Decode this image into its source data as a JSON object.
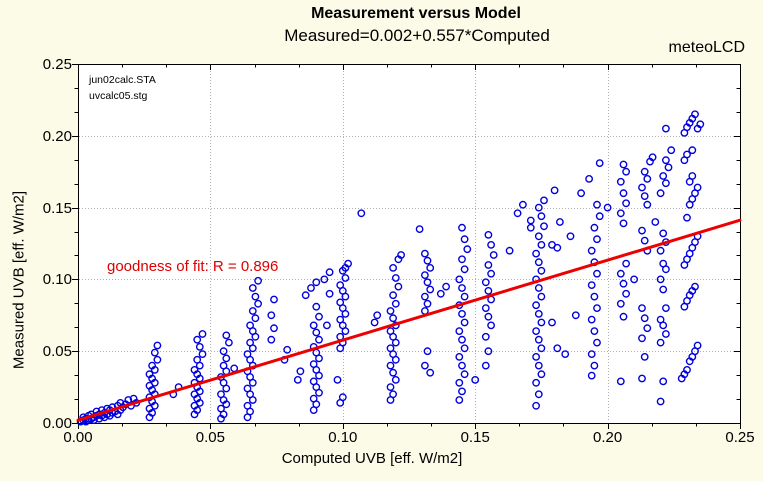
{
  "window": {
    "background_color": "#FBFBE8",
    "plot_background_color": "#FFFFFF"
  },
  "header": {
    "title": "Measurement versus Model",
    "subtitle": "Measured=0.002+0.557*Computed",
    "brand": "meteoLCD"
  },
  "plot_notes": {
    "file_label_1": "jun02calc.STA",
    "file_label_2": "uvcalc05.stg"
  },
  "chart_data": {
    "type": "scatter",
    "title": "Measurement versus Model",
    "subtitle": "Measured=0.002+0.557*Computed",
    "xlabel": "Computed UVB [eff. W/m2]",
    "ylabel": "Measured UVB [eff. W/m2]",
    "xlim": [
      0,
      0.25
    ],
    "ylim": [
      0,
      0.25
    ],
    "xticks": [
      0,
      0.05,
      0.1,
      0.15,
      0.2,
      0.25
    ],
    "yticks": [
      0,
      0.05,
      0.1,
      0.15,
      0.2,
      0.25
    ],
    "xtick_labels": [
      "0.00",
      "0.05",
      "0.10",
      "0.15",
      "0.20",
      "0.25"
    ],
    "ytick_labels": [
      "0.00",
      "0.05",
      "0.10",
      "0.15",
      "0.20",
      "0.25"
    ],
    "minor_ticks_per_major": 3,
    "grid": "dotted-major",
    "grid_color": "#b0b0b0",
    "annotation": {
      "text": "goodness of fit: R = 0.896",
      "color": "#dd0000"
    },
    "fit_line": {
      "intercept": 0.002,
      "slope": 0.557,
      "r": 0.896,
      "color": "#ee0000",
      "x_range": [
        0,
        0.25
      ]
    },
    "marker": {
      "shape": "open-circle",
      "color": "#0000dd",
      "radius_px": 3.2
    },
    "points": [
      [
        0.001,
        0.001
      ],
      [
        0.002,
        0.002
      ],
      [
        0.002,
        0.004
      ],
      [
        0.003,
        0.001
      ],
      [
        0.003,
        0.003
      ],
      [
        0.004,
        0.002
      ],
      [
        0.004,
        0.005
      ],
      [
        0.005,
        0.003
      ],
      [
        0.005,
        0.006
      ],
      [
        0.006,
        0.002
      ],
      [
        0.006,
        0.004
      ],
      [
        0.007,
        0.005
      ],
      [
        0.007,
        0.008
      ],
      [
        0.008,
        0.003
      ],
      [
        0.008,
        0.006
      ],
      [
        0.009,
        0.005
      ],
      [
        0.009,
        0.009
      ],
      [
        0.01,
        0.004
      ],
      [
        0.01,
        0.007
      ],
      [
        0.011,
        0.006
      ],
      [
        0.011,
        0.01
      ],
      [
        0.012,
        0.005
      ],
      [
        0.012,
        0.009
      ],
      [
        0.013,
        0.007
      ],
      [
        0.013,
        0.011
      ],
      [
        0.014,
        0.008
      ],
      [
        0.015,
        0.006
      ],
      [
        0.015,
        0.012
      ],
      [
        0.016,
        0.009
      ],
      [
        0.016,
        0.014
      ],
      [
        0.017,
        0.011
      ],
      [
        0.018,
        0.013
      ],
      [
        0.019,
        0.016
      ],
      [
        0.02,
        0.012
      ],
      [
        0.021,
        0.017
      ],
      [
        0.022,
        0.014
      ],
      [
        0.027,
        0.004
      ],
      [
        0.028,
        0.007
      ],
      [
        0.027,
        0.01
      ],
      [
        0.029,
        0.012
      ],
      [
        0.028,
        0.015
      ],
      [
        0.027,
        0.018
      ],
      [
        0.029,
        0.02
      ],
      [
        0.028,
        0.023
      ],
      [
        0.027,
        0.026
      ],
      [
        0.029,
        0.028
      ],
      [
        0.028,
        0.031
      ],
      [
        0.027,
        0.034
      ],
      [
        0.029,
        0.037
      ],
      [
        0.028,
        0.04
      ],
      [
        0.03,
        0.044
      ],
      [
        0.029,
        0.049
      ],
      [
        0.03,
        0.054
      ],
      [
        0.036,
        0.02
      ],
      [
        0.038,
        0.025
      ],
      [
        0.044,
        0.006
      ],
      [
        0.045,
        0.009
      ],
      [
        0.044,
        0.012
      ],
      [
        0.046,
        0.014
      ],
      [
        0.045,
        0.017
      ],
      [
        0.044,
        0.02
      ],
      [
        0.046,
        0.022
      ],
      [
        0.045,
        0.025
      ],
      [
        0.044,
        0.028
      ],
      [
        0.046,
        0.031
      ],
      [
        0.045,
        0.034
      ],
      [
        0.044,
        0.037
      ],
      [
        0.046,
        0.04
      ],
      [
        0.045,
        0.044
      ],
      [
        0.047,
        0.048
      ],
      [
        0.046,
        0.053
      ],
      [
        0.045,
        0.058
      ],
      [
        0.047,
        0.062
      ],
      [
        0.054,
        0.003
      ],
      [
        0.055,
        0.006
      ],
      [
        0.054,
        0.01
      ],
      [
        0.056,
        0.013
      ],
      [
        0.055,
        0.016
      ],
      [
        0.054,
        0.02
      ],
      [
        0.056,
        0.024
      ],
      [
        0.055,
        0.028
      ],
      [
        0.054,
        0.032
      ],
      [
        0.056,
        0.036
      ],
      [
        0.055,
        0.04
      ],
      [
        0.056,
        0.045
      ],
      [
        0.055,
        0.05
      ],
      [
        0.057,
        0.056
      ],
      [
        0.056,
        0.061
      ],
      [
        0.059,
        0.038
      ],
      [
        0.064,
        0.004
      ],
      [
        0.065,
        0.008
      ],
      [
        0.064,
        0.012
      ],
      [
        0.066,
        0.016
      ],
      [
        0.065,
        0.02
      ],
      [
        0.064,
        0.024
      ],
      [
        0.066,
        0.028
      ],
      [
        0.065,
        0.032
      ],
      [
        0.064,
        0.036
      ],
      [
        0.066,
        0.04
      ],
      [
        0.065,
        0.044
      ],
      [
        0.064,
        0.048
      ],
      [
        0.066,
        0.052
      ],
      [
        0.065,
        0.056
      ],
      [
        0.067,
        0.06
      ],
      [
        0.066,
        0.064
      ],
      [
        0.065,
        0.068
      ],
      [
        0.067,
        0.073
      ],
      [
        0.066,
        0.078
      ],
      [
        0.068,
        0.083
      ],
      [
        0.067,
        0.088
      ],
      [
        0.066,
        0.094
      ],
      [
        0.068,
        0.099
      ],
      [
        0.073,
        0.058
      ],
      [
        0.074,
        0.066
      ],
      [
        0.073,
        0.075
      ],
      [
        0.074,
        0.086
      ],
      [
        0.078,
        0.044
      ],
      [
        0.079,
        0.051
      ],
      [
        0.083,
        0.03
      ],
      [
        0.084,
        0.036
      ],
      [
        0.089,
        0.009
      ],
      [
        0.09,
        0.013
      ],
      [
        0.089,
        0.017
      ],
      [
        0.091,
        0.021
      ],
      [
        0.09,
        0.025
      ],
      [
        0.089,
        0.029
      ],
      [
        0.091,
        0.033
      ],
      [
        0.09,
        0.037
      ],
      [
        0.089,
        0.041
      ],
      [
        0.091,
        0.045
      ],
      [
        0.09,
        0.049
      ],
      [
        0.089,
        0.053
      ],
      [
        0.091,
        0.058
      ],
      [
        0.09,
        0.063
      ],
      [
        0.089,
        0.068
      ],
      [
        0.091,
        0.074
      ],
      [
        0.09,
        0.081
      ],
      [
        0.086,
        0.089
      ],
      [
        0.088,
        0.094
      ],
      [
        0.09,
        0.098
      ],
      [
        0.093,
        0.1
      ],
      [
        0.095,
        0.105
      ],
      [
        0.095,
        0.09
      ],
      [
        0.094,
        0.068
      ],
      [
        0.099,
        0.052
      ],
      [
        0.1,
        0.056
      ],
      [
        0.099,
        0.06
      ],
      [
        0.101,
        0.064
      ],
      [
        0.1,
        0.068
      ],
      [
        0.099,
        0.072
      ],
      [
        0.101,
        0.076
      ],
      [
        0.1,
        0.08
      ],
      [
        0.099,
        0.084
      ],
      [
        0.101,
        0.088
      ],
      [
        0.1,
        0.092
      ],
      [
        0.099,
        0.096
      ],
      [
        0.101,
        0.101
      ],
      [
        0.1,
        0.106
      ],
      [
        0.102,
        0.111
      ],
      [
        0.099,
        0.014
      ],
      [
        0.1,
        0.018
      ],
      [
        0.098,
        0.03
      ],
      [
        0.101,
        0.108
      ],
      [
        0.107,
        0.146
      ],
      [
        0.112,
        0.07
      ],
      [
        0.113,
        0.075
      ],
      [
        0.118,
        0.016
      ],
      [
        0.119,
        0.02
      ],
      [
        0.118,
        0.025
      ],
      [
        0.12,
        0.03
      ],
      [
        0.119,
        0.035
      ],
      [
        0.118,
        0.04
      ],
      [
        0.12,
        0.044
      ],
      [
        0.119,
        0.048
      ],
      [
        0.118,
        0.052
      ],
      [
        0.12,
        0.056
      ],
      [
        0.119,
        0.06
      ],
      [
        0.118,
        0.064
      ],
      [
        0.12,
        0.068
      ],
      [
        0.119,
        0.073
      ],
      [
        0.118,
        0.078
      ],
      [
        0.12,
        0.083
      ],
      [
        0.119,
        0.089
      ],
      [
        0.121,
        0.095
      ],
      [
        0.12,
        0.101
      ],
      [
        0.119,
        0.108
      ],
      [
        0.121,
        0.114
      ],
      [
        0.122,
        0.117
      ],
      [
        0.131,
        0.078
      ],
      [
        0.132,
        0.083
      ],
      [
        0.131,
        0.088
      ],
      [
        0.133,
        0.093
      ],
      [
        0.132,
        0.098
      ],
      [
        0.131,
        0.103
      ],
      [
        0.133,
        0.108
      ],
      [
        0.132,
        0.113
      ],
      [
        0.131,
        0.118
      ],
      [
        0.132,
        0.05
      ],
      [
        0.131,
        0.04
      ],
      [
        0.133,
        0.035
      ],
      [
        0.129,
        0.135
      ],
      [
        0.137,
        0.09
      ],
      [
        0.139,
        0.095
      ],
      [
        0.144,
        0.016
      ],
      [
        0.145,
        0.022
      ],
      [
        0.144,
        0.028
      ],
      [
        0.146,
        0.034
      ],
      [
        0.145,
        0.04
      ],
      [
        0.144,
        0.046
      ],
      [
        0.146,
        0.052
      ],
      [
        0.145,
        0.058
      ],
      [
        0.144,
        0.064
      ],
      [
        0.146,
        0.07
      ],
      [
        0.145,
        0.076
      ],
      [
        0.144,
        0.082
      ],
      [
        0.146,
        0.088
      ],
      [
        0.145,
        0.094
      ],
      [
        0.144,
        0.1
      ],
      [
        0.146,
        0.107
      ],
      [
        0.145,
        0.114
      ],
      [
        0.147,
        0.121
      ],
      [
        0.146,
        0.128
      ],
      [
        0.145,
        0.136
      ],
      [
        0.154,
        0.04
      ],
      [
        0.155,
        0.05
      ],
      [
        0.154,
        0.06
      ],
      [
        0.156,
        0.068
      ],
      [
        0.155,
        0.074
      ],
      [
        0.154,
        0.08
      ],
      [
        0.156,
        0.086
      ],
      [
        0.155,
        0.092
      ],
      [
        0.154,
        0.098
      ],
      [
        0.156,
        0.104
      ],
      [
        0.155,
        0.11
      ],
      [
        0.157,
        0.117
      ],
      [
        0.156,
        0.124
      ],
      [
        0.155,
        0.131
      ],
      [
        0.15,
        0.03
      ],
      [
        0.163,
        0.12
      ],
      [
        0.166,
        0.146
      ],
      [
        0.168,
        0.152
      ],
      [
        0.171,
        0.136
      ],
      [
        0.171,
        0.141
      ],
      [
        0.173,
        0.012
      ],
      [
        0.174,
        0.02
      ],
      [
        0.173,
        0.028
      ],
      [
        0.175,
        0.034
      ],
      [
        0.174,
        0.04
      ],
      [
        0.173,
        0.046
      ],
      [
        0.175,
        0.052
      ],
      [
        0.174,
        0.058
      ],
      [
        0.173,
        0.064
      ],
      [
        0.175,
        0.07
      ],
      [
        0.174,
        0.076
      ],
      [
        0.173,
        0.082
      ],
      [
        0.175,
        0.088
      ],
      [
        0.174,
        0.094
      ],
      [
        0.173,
        0.1
      ],
      [
        0.175,
        0.106
      ],
      [
        0.174,
        0.112
      ],
      [
        0.173,
        0.118
      ],
      [
        0.175,
        0.124
      ],
      [
        0.174,
        0.13
      ],
      [
        0.176,
        0.137
      ],
      [
        0.175,
        0.144
      ],
      [
        0.174,
        0.15
      ],
      [
        0.176,
        0.155
      ],
      [
        0.18,
        0.162
      ],
      [
        0.182,
        0.14
      ],
      [
        0.179,
        0.124
      ],
      [
        0.181,
        0.122
      ],
      [
        0.179,
        0.07
      ],
      [
        0.181,
        0.052
      ],
      [
        0.184,
        0.048
      ],
      [
        0.186,
        0.13
      ],
      [
        0.188,
        0.075
      ],
      [
        0.19,
        0.16
      ],
      [
        0.194,
        0.033
      ],
      [
        0.195,
        0.04
      ],
      [
        0.194,
        0.048
      ],
      [
        0.196,
        0.056
      ],
      [
        0.195,
        0.064
      ],
      [
        0.194,
        0.072
      ],
      [
        0.196,
        0.08
      ],
      [
        0.195,
        0.088
      ],
      [
        0.194,
        0.096
      ],
      [
        0.196,
        0.104
      ],
      [
        0.195,
        0.112
      ],
      [
        0.194,
        0.12
      ],
      [
        0.196,
        0.128
      ],
      [
        0.195,
        0.136
      ],
      [
        0.197,
        0.144
      ],
      [
        0.196,
        0.152
      ],
      [
        0.193,
        0.17
      ],
      [
        0.197,
        0.181
      ],
      [
        0.2,
        0.15
      ],
      [
        0.205,
        0.029
      ],
      [
        0.206,
        0.074
      ],
      [
        0.205,
        0.083
      ],
      [
        0.207,
        0.09
      ],
      [
        0.206,
        0.097
      ],
      [
        0.205,
        0.104
      ],
      [
        0.207,
        0.111
      ],
      [
        0.206,
        0.139
      ],
      [
        0.205,
        0.146
      ],
      [
        0.207,
        0.153
      ],
      [
        0.206,
        0.16
      ],
      [
        0.205,
        0.168
      ],
      [
        0.207,
        0.175
      ],
      [
        0.206,
        0.18
      ],
      [
        0.21,
        0.1
      ],
      [
        0.213,
        0.031
      ],
      [
        0.214,
        0.046
      ],
      [
        0.213,
        0.059
      ],
      [
        0.215,
        0.066
      ],
      [
        0.214,
        0.073
      ],
      [
        0.213,
        0.08
      ],
      [
        0.215,
        0.12
      ],
      [
        0.214,
        0.127
      ],
      [
        0.213,
        0.134
      ],
      [
        0.215,
        0.152
      ],
      [
        0.214,
        0.158
      ],
      [
        0.213,
        0.164
      ],
      [
        0.215,
        0.17
      ],
      [
        0.214,
        0.175
      ],
      [
        0.216,
        0.182
      ],
      [
        0.217,
        0.185
      ],
      [
        0.218,
        0.14
      ],
      [
        0.22,
        0.015
      ],
      [
        0.221,
        0.029
      ],
      [
        0.22,
        0.056
      ],
      [
        0.222,
        0.062
      ],
      [
        0.221,
        0.068
      ],
      [
        0.22,
        0.072
      ],
      [
        0.222,
        0.08
      ],
      [
        0.221,
        0.093
      ],
      [
        0.22,
        0.1
      ],
      [
        0.222,
        0.107
      ],
      [
        0.221,
        0.111
      ],
      [
        0.22,
        0.12
      ],
      [
        0.222,
        0.126
      ],
      [
        0.221,
        0.132
      ],
      [
        0.22,
        0.16
      ],
      [
        0.222,
        0.167
      ],
      [
        0.221,
        0.172
      ],
      [
        0.223,
        0.178
      ],
      [
        0.222,
        0.183
      ],
      [
        0.224,
        0.19
      ],
      [
        0.222,
        0.205
      ],
      [
        0.228,
        0.031
      ],
      [
        0.229,
        0.034
      ],
      [
        0.23,
        0.037
      ],
      [
        0.231,
        0.043
      ],
      [
        0.232,
        0.046
      ],
      [
        0.233,
        0.05
      ],
      [
        0.234,
        0.054
      ],
      [
        0.229,
        0.081
      ],
      [
        0.23,
        0.085
      ],
      [
        0.231,
        0.089
      ],
      [
        0.232,
        0.092
      ],
      [
        0.233,
        0.095
      ],
      [
        0.229,
        0.11
      ],
      [
        0.23,
        0.114
      ],
      [
        0.231,
        0.118
      ],
      [
        0.232,
        0.122
      ],
      [
        0.233,
        0.126
      ],
      [
        0.234,
        0.13
      ],
      [
        0.23,
        0.143
      ],
      [
        0.231,
        0.152
      ],
      [
        0.232,
        0.156
      ],
      [
        0.233,
        0.16
      ],
      [
        0.234,
        0.164
      ],
      [
        0.231,
        0.168
      ],
      [
        0.232,
        0.172
      ],
      [
        0.229,
        0.183
      ],
      [
        0.23,
        0.187
      ],
      [
        0.232,
        0.19
      ],
      [
        0.229,
        0.202
      ],
      [
        0.23,
        0.206
      ],
      [
        0.231,
        0.209
      ],
      [
        0.232,
        0.212
      ],
      [
        0.233,
        0.215
      ],
      [
        0.234,
        0.205
      ],
      [
        0.235,
        0.208
      ]
    ]
  }
}
